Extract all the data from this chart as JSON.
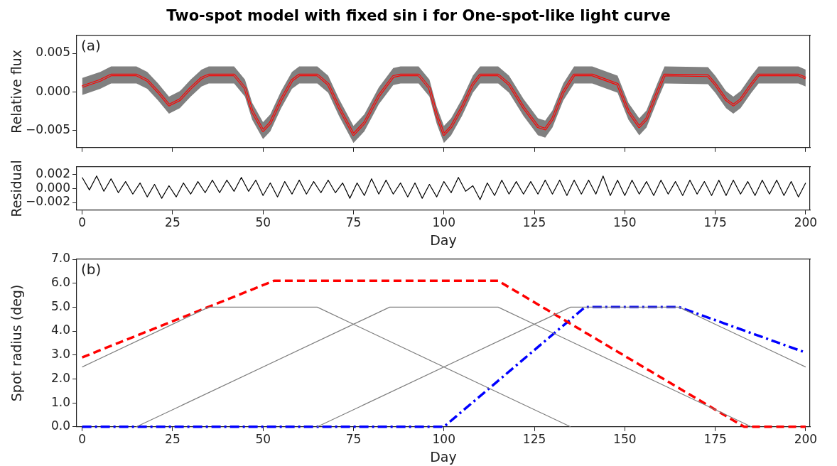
{
  "chart_data": [
    {
      "type": "line",
      "title": "Two-spot model with fixed sin i for One-spot-like light curve",
      "ylabel": "Relative flux",
      "annotations": [
        "(a)"
      ],
      "tick_labels": "y",
      "xlim": [
        -1.5,
        201.2
      ],
      "xticks": [
        0,
        25,
        50,
        75,
        100,
        125,
        150,
        175,
        200
      ],
      "ylim": [
        -0.0072,
        0.0073
      ],
      "yticks": [
        {
          "value": -0.005,
          "label": "−0.005"
        },
        {
          "value": 0,
          "label": "0.000"
        },
        {
          "value": 0.005,
          "label": "0.005"
        }
      ],
      "x": [
        0,
        5,
        8,
        15,
        18,
        21,
        24,
        27,
        30,
        33,
        35,
        42,
        45,
        47,
        50,
        52,
        55,
        58,
        60,
        65,
        68,
        71,
        75,
        78,
        82,
        86,
        88,
        93,
        96,
        98,
        100,
        102,
        105,
        108,
        110,
        115,
        118,
        122,
        126,
        128,
        130,
        133,
        136,
        141,
        148,
        151,
        154,
        156,
        159,
        161,
        173,
        175,
        178,
        180,
        182,
        185,
        187,
        198,
        200
      ],
      "series": [
        {
          "color": "#808080",
          "line_style": "solid",
          "values": [
            0.0007,
            0.0015,
            0.0022,
            0.0022,
            0.0015,
            0.0,
            -0.0017,
            -0.001,
            0.0005,
            0.0018,
            0.0022,
            0.0022,
            0.0005,
            -0.0025,
            -0.005,
            -0.004,
            -0.001,
            0.0015,
            0.0022,
            0.0022,
            0.001,
            -0.002,
            -0.0055,
            -0.004,
            -0.0005,
            0.002,
            0.0022,
            0.0022,
            0.0005,
            -0.003,
            -0.0055,
            -0.0045,
            -0.002,
            0.001,
            0.0022,
            0.0022,
            0.001,
            -0.002,
            -0.0045,
            -0.0048,
            -0.0035,
            0.0,
            0.0022,
            0.0022,
            0.001,
            -0.0025,
            -0.0045,
            -0.0035,
            0.0,
            0.0022,
            0.0021,
            0.001,
            -0.001,
            -0.0017,
            -0.001,
            0.001,
            0.0022,
            0.0022,
            0.0018
          ],
          "upper": [
            0.0018,
            0.0026,
            0.0033,
            0.0033,
            0.0026,
            0.0011,
            -0.0006,
            0.0001,
            0.0016,
            0.0029,
            0.0033,
            0.0033,
            0.0016,
            -0.0014,
            -0.0039,
            -0.0029,
            0.0001,
            0.0026,
            0.0033,
            0.0033,
            0.0021,
            -0.0009,
            -0.0044,
            -0.0029,
            0.0006,
            0.0031,
            0.0033,
            0.0033,
            0.0016,
            -0.0019,
            -0.0044,
            -0.0034,
            -0.0009,
            0.0021,
            0.0033,
            0.0033,
            0.0021,
            -0.0009,
            -0.0034,
            -0.0037,
            -0.0024,
            0.0011,
            0.0033,
            0.0033,
            0.0021,
            -0.0014,
            -0.0034,
            -0.0024,
            0.0011,
            0.0033,
            0.0032,
            0.0021,
            0.0001,
            -0.0006,
            0.0001,
            0.0021,
            0.0033,
            0.0033,
            0.0029
          ],
          "lower": [
            -0.0004,
            0.0004,
            0.0011,
            0.0011,
            0.0004,
            -0.0011,
            -0.0028,
            -0.0021,
            -0.0006,
            0.0007,
            0.0011,
            0.0011,
            -0.0006,
            -0.0036,
            -0.0061,
            -0.0051,
            -0.0021,
            0.0004,
            0.0011,
            0.0011,
            -0.0001,
            -0.0031,
            -0.0066,
            -0.0051,
            -0.0016,
            0.0009,
            0.0011,
            0.0011,
            -0.0006,
            -0.0041,
            -0.0066,
            -0.0056,
            -0.0031,
            -0.0001,
            0.0011,
            0.0011,
            -0.0001,
            -0.0031,
            -0.0056,
            -0.0059,
            -0.0046,
            -0.0011,
            0.0011,
            0.0011,
            -0.0001,
            -0.0036,
            -0.0056,
            -0.0046,
            -0.0011,
            0.0011,
            0.001,
            -0.0001,
            -0.0021,
            -0.0028,
            -0.0021,
            -0.0001,
            0.0011,
            0.0011,
            0.0007
          ]
        },
        {
          "color": "#ff0000",
          "values": [
            0.0007,
            0.0015,
            0.0022,
            0.0022,
            0.0015,
            0.0,
            -0.0017,
            -0.001,
            0.0005,
            0.0018,
            0.0022,
            0.0022,
            0.0005,
            -0.0025,
            -0.005,
            -0.004,
            -0.001,
            0.0015,
            0.0022,
            0.0022,
            0.001,
            -0.002,
            -0.0055,
            -0.004,
            -0.0005,
            0.002,
            0.0022,
            0.0022,
            0.0005,
            -0.003,
            -0.0055,
            -0.0045,
            -0.002,
            0.001,
            0.0022,
            0.0022,
            0.001,
            -0.002,
            -0.0045,
            -0.0048,
            -0.0035,
            0.0,
            0.0022,
            0.0022,
            0.001,
            -0.0025,
            -0.0045,
            -0.0035,
            0.0,
            0.0022,
            0.0021,
            0.001,
            -0.001,
            -0.0017,
            -0.001,
            0.001,
            0.0022,
            0.0022,
            0.0018
          ]
        }
      ]
    },
    {
      "type": "line",
      "xlabel": "Day",
      "ylabel": "Residual",
      "xlim": [
        -1.5,
        201.2
      ],
      "xticks": [
        0,
        25,
        50,
        75,
        100,
        125,
        150,
        175,
        200
      ],
      "ylim": [
        -0.0031,
        0.0031
      ],
      "yticks": [
        {
          "value": -0.002,
          "label": "−0.002"
        },
        {
          "value": 0,
          "label": "0.000"
        },
        {
          "value": 0.002,
          "label": "0.002"
        }
      ],
      "x": [
        0,
        2,
        4,
        6,
        8,
        10,
        12,
        14,
        16,
        18,
        20,
        22,
        24,
        26,
        28,
        30,
        32,
        34,
        36,
        38,
        40,
        42,
        44,
        46,
        48,
        50,
        52,
        54,
        56,
        58,
        60,
        62,
        64,
        66,
        68,
        70,
        72,
        74,
        76,
        78,
        80,
        82,
        84,
        86,
        88,
        90,
        92,
        94,
        96,
        98,
        100,
        102,
        104,
        106,
        108,
        110,
        112,
        114,
        116,
        118,
        120,
        122,
        124,
        126,
        128,
        130,
        132,
        134,
        136,
        138,
        140,
        142,
        144,
        146,
        148,
        150,
        152,
        154,
        156,
        158,
        160,
        162,
        164,
        166,
        168,
        170,
        172,
        174,
        176,
        178,
        180,
        182,
        184,
        186,
        188,
        190,
        192,
        194,
        196,
        198,
        200
      ],
      "series": [
        {
          "color": "#000000",
          "line_style": "solid",
          "values": [
            0.0016,
            -0.0002,
            0.0018,
            -0.0004,
            0.0014,
            -0.0006,
            0.001,
            -0.0008,
            0.0008,
            -0.0012,
            0.0006,
            -0.0014,
            0.0004,
            -0.0012,
            0.0008,
            -0.0008,
            0.001,
            -0.0006,
            0.0012,
            -0.0006,
            0.0012,
            -0.0004,
            0.0016,
            -0.0004,
            0.0012,
            -0.001,
            0.0008,
            -0.0012,
            0.001,
            -0.0008,
            0.0012,
            -0.0008,
            0.001,
            -0.0006,
            0.0012,
            -0.0006,
            0.0008,
            -0.0014,
            0.0008,
            -0.001,
            0.0014,
            -0.0008,
            0.0012,
            -0.0008,
            0.0008,
            -0.0012,
            0.0008,
            -0.0014,
            0.0006,
            -0.0012,
            0.001,
            -0.0006,
            0.0016,
            -0.0004,
            0.0004,
            -0.0016,
            0.0008,
            -0.001,
            0.0012,
            -0.0008,
            0.001,
            -0.0008,
            0.001,
            -0.0008,
            0.0012,
            -0.0008,
            0.0012,
            -0.001,
            0.0012,
            -0.0008,
            0.0012,
            -0.0008,
            0.0018,
            -0.001,
            0.0012,
            -0.001,
            0.0012,
            -0.0008,
            0.001,
            -0.001,
            0.0012,
            -0.0008,
            0.001,
            -0.001,
            0.0012,
            -0.0008,
            0.001,
            -0.001,
            0.0012,
            -0.001,
            0.0012,
            -0.0008,
            0.001,
            -0.001,
            0.0012,
            -0.0008,
            0.0012,
            -0.001,
            0.001,
            -0.0012,
            0.0008
          ]
        }
      ]
    },
    {
      "type": "line",
      "xlabel": "Day",
      "ylabel": "Spot radius (deg)",
      "annotations": [
        "(b)"
      ],
      "xlim": [
        -1.5,
        201.2
      ],
      "xticks": [
        0,
        25,
        50,
        75,
        100,
        125,
        150,
        175,
        200
      ],
      "ylim": [
        0,
        7
      ],
      "yticks": [
        {
          "value": 0,
          "label": "0.0"
        },
        {
          "value": 1,
          "label": "1.0"
        },
        {
          "value": 2,
          "label": "2.0"
        },
        {
          "value": 3,
          "label": "3.0"
        },
        {
          "value": 4,
          "label": "4.0"
        },
        {
          "value": 5,
          "label": "5.0"
        },
        {
          "value": 6,
          "label": "6.0"
        },
        {
          "value": 7,
          "label": "7.0"
        }
      ],
      "series": [
        {
          "color": "#808080",
          "line_style": "solid",
          "x": [
            0,
            35,
            65,
            135
          ],
          "values": [
            2.5,
            5,
            5,
            0
          ]
        },
        {
          "color": "#808080",
          "line_style": "solid",
          "x": [
            15,
            85,
            115,
            185
          ],
          "values": [
            0,
            5,
            5,
            0
          ]
        },
        {
          "color": "#808080",
          "line_style": "solid",
          "x": [
            65,
            135,
            165,
            200
          ],
          "values": [
            0,
            5,
            5,
            2.5
          ]
        },
        {
          "color": "#ff0000",
          "line_style": "dashed",
          "x": [
            0,
            53,
            115,
            183,
            200
          ],
          "values": [
            2.9,
            6.1,
            6.1,
            0,
            0
          ]
        },
        {
          "color": "#0000ff",
          "line_style": "dashdot",
          "x": [
            0,
            100,
            139,
            165,
            200
          ],
          "values": [
            0,
            0,
            5,
            5,
            3.1
          ]
        }
      ]
    }
  ]
}
